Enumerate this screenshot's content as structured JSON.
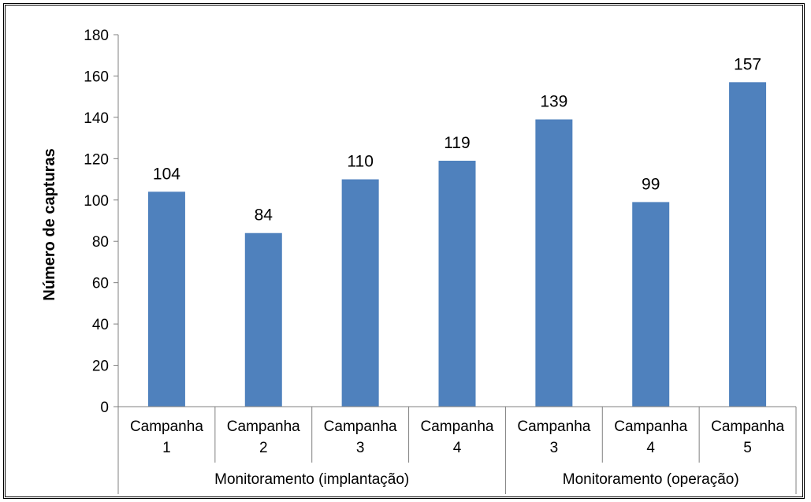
{
  "chart_data": {
    "type": "bar",
    "ylabel": "Número de capturas",
    "xlabel": "",
    "ylim": [
      0,
      180
    ],
    "yticks": [
      0,
      20,
      40,
      60,
      80,
      100,
      120,
      140,
      160,
      180
    ],
    "grid": false,
    "bar_color": "#4F81BD",
    "categories": [
      {
        "line1": "Campanha",
        "line2": "1",
        "group": 0
      },
      {
        "line1": "Campanha",
        "line2": "2",
        "group": 0
      },
      {
        "line1": "Campanha",
        "line2": "3",
        "group": 0
      },
      {
        "line1": "Campanha",
        "line2": "4",
        "group": 0
      },
      {
        "line1": "Campanha",
        "line2": "3",
        "group": 1
      },
      {
        "line1": "Campanha",
        "line2": "4",
        "group": 1
      },
      {
        "line1": "Campanha",
        "line2": "5",
        "group": 1
      }
    ],
    "groups": [
      "Monitoramento (implantação)",
      "Monitoramento (operação)"
    ],
    "values": [
      104,
      84,
      110,
      119,
      139,
      99,
      157
    ]
  }
}
